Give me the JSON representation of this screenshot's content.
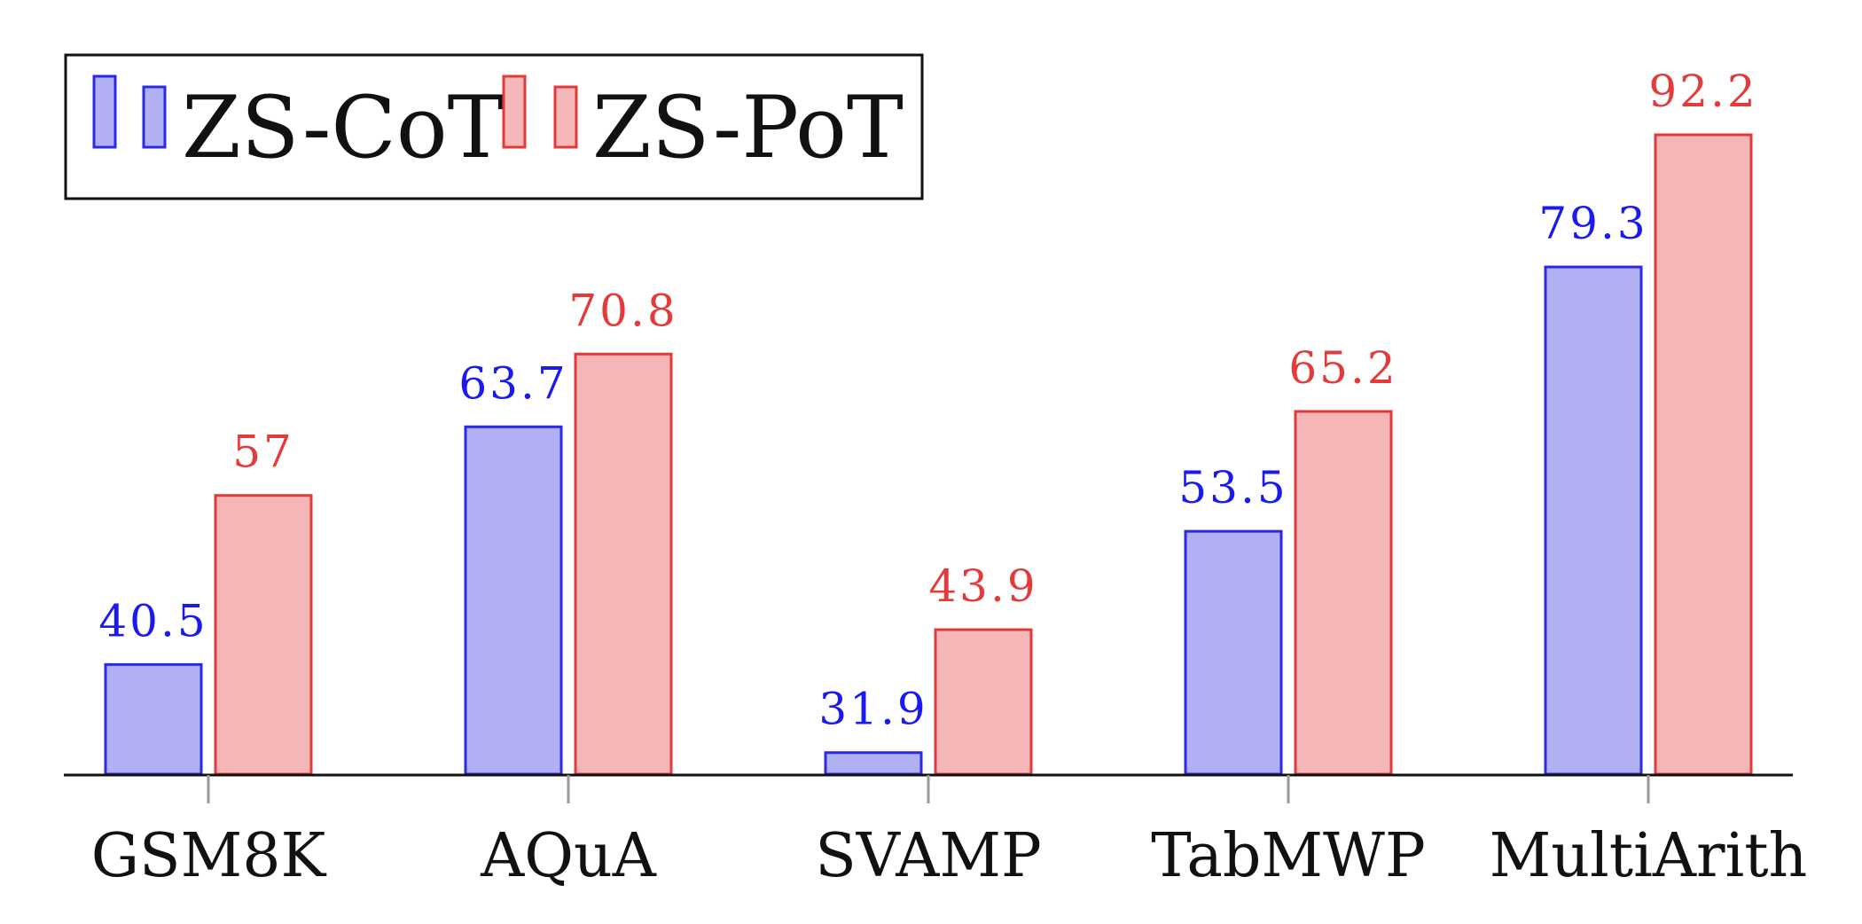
{
  "chart_data": {
    "type": "bar",
    "categories": [
      "GSM8K",
      "AQuA",
      "SVAMP",
      "TabMWP",
      "MultiArith"
    ],
    "series": [
      {
        "name": "ZS-CoT",
        "values": [
          40.5,
          63.7,
          31.9,
          53.5,
          79.3
        ],
        "labels": [
          "40.5",
          "63.7",
          "31.9",
          "53.5",
          "79.3"
        ],
        "stroke": "#2a2ae6",
        "fill": "#b0b0f2",
        "label_color": "#1a1af0"
      },
      {
        "name": "ZS-PoT",
        "values": [
          57,
          70.8,
          43.9,
          65.2,
          92.2
        ],
        "labels": [
          "57",
          "70.8",
          "43.9",
          "65.2",
          "92.2"
        ],
        "stroke": "#e03a3a",
        "fill": "#f4b6b6",
        "label_color": "#e43a3a"
      }
    ],
    "title": "",
    "xlabel": "",
    "ylabel": "",
    "ylim": [
      29.8,
      92.2
    ],
    "legend_position": "top-left",
    "grid": false
  }
}
